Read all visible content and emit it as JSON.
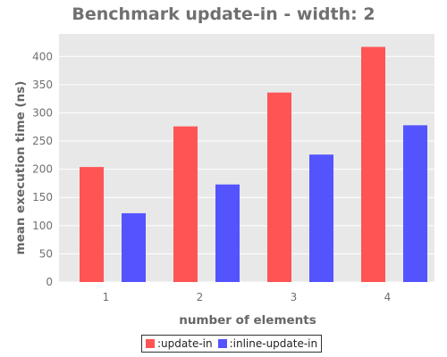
{
  "chart_data": {
    "type": "bar",
    "title": "Benchmark update-in - width: 2",
    "xlabel": "number of elements",
    "ylabel": "mean execution time (ns)",
    "categories": [
      "1",
      "2",
      "3",
      "4"
    ],
    "ylim": [
      0,
      440
    ],
    "yticks": [
      0,
      50,
      100,
      150,
      200,
      250,
      300,
      350,
      400
    ],
    "grid": true,
    "legend_position": "bottom",
    "series": [
      {
        "name": ":update-in",
        "color": "#ff5454",
        "values": [
          204,
          276,
          336,
          417
        ]
      },
      {
        "name": ":inline-update-in",
        "color": "#5454ff",
        "values": [
          122,
          173,
          226,
          278
        ]
      }
    ]
  },
  "style": {
    "plot_background": "#e8e8e8",
    "grid_color": "#ffffff"
  }
}
